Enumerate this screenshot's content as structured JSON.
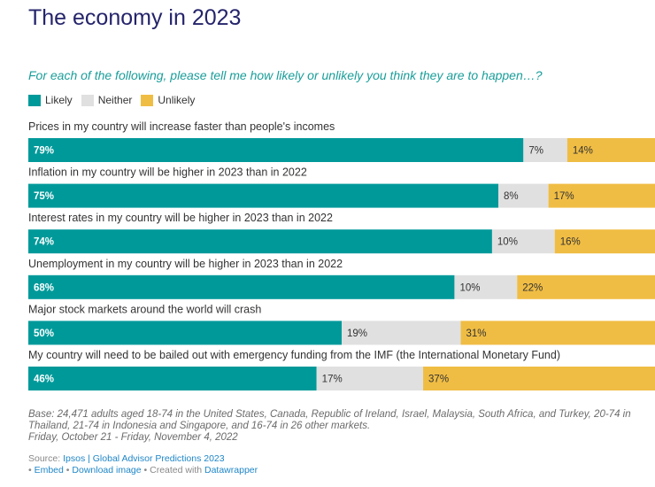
{
  "header": {
    "title": "The economy in 2023",
    "subtitle": "For each of the following, please tell me how likely or unlikely you think they are to happen…?"
  },
  "legend": [
    {
      "label": "Likely",
      "color": "#00999a"
    },
    {
      "label": "Neither",
      "color": "#e0e0e0"
    },
    {
      "label": "Unlikely",
      "color": "#f0bd44"
    }
  ],
  "chart_data": {
    "type": "bar",
    "orientation": "horizontal",
    "stacked": true,
    "categories": [
      "Prices in my country will increase faster than people's incomes",
      "Inflation in my country will be higher in 2023 than in 2022",
      "Interest rates in my country will be higher in 2023 than in 2022",
      "Unemployment in my country will be higher in 2023 than in 2022",
      "Major stock markets around the world will crash",
      "My country will need to be bailed out with emergency funding from the IMF (the International Monetary Fund)"
    ],
    "series": [
      {
        "name": "Likely",
        "values": [
          79,
          75,
          74,
          68,
          50,
          46
        ],
        "color": "#00999a"
      },
      {
        "name": "Neither",
        "values": [
          7,
          8,
          10,
          10,
          19,
          17
        ],
        "color": "#e0e0e0"
      },
      {
        "name": "Unlikely",
        "values": [
          14,
          17,
          16,
          22,
          31,
          37
        ],
        "color": "#f0bd44"
      }
    ],
    "value_suffix": "%",
    "xlim": [
      0,
      100
    ]
  },
  "notes": {
    "base_line1": "Base: 24,471 adults aged 18-74 in the United States, Canada, Republic of Ireland, Israel, Malaysia, South Africa, and Turkey, 20-74 in",
    "base_line2": "Thailand, 21-74 in Indonesia and Singapore, and 16-74 in 26 other markets.",
    "dates": "Friday, October 21 - Friday, November 4, 2022"
  },
  "footer": {
    "source_prefix": "Source: ",
    "source_link": "Ipsos | Global Advisor Predictions 2023",
    "embed": "Embed",
    "download": "Download image",
    "created_prefix": "Created with ",
    "created_link": "Datawrapper",
    "sep": " • "
  }
}
